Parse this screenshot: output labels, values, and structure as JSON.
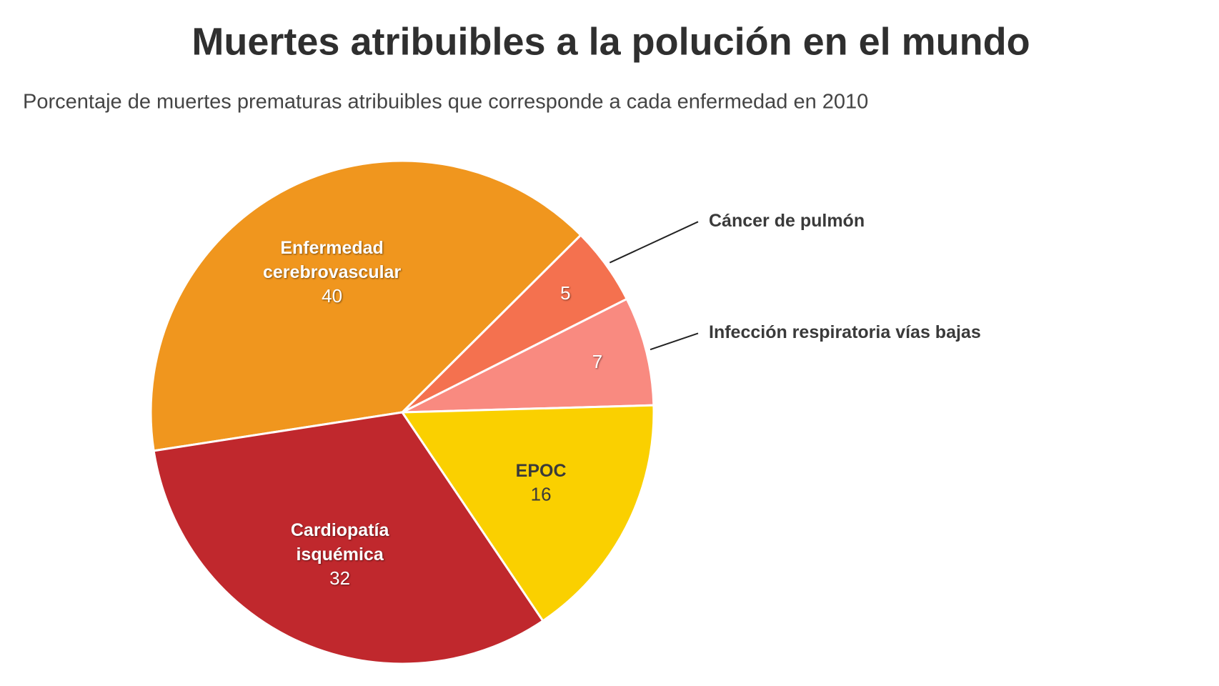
{
  "chart_data": {
    "type": "pie",
    "title": "Muertes atribuibles a la polución en el mundo",
    "subtitle": "Porcentaje de muertes prematuras atribuibles que corresponde a cada enfermedad en 2010",
    "categories": [
      "Infección respiratoria vías bajas",
      "Cáncer de pulmón",
      "Enfermedad cerebrovascular",
      "Cardiopatía isquémica",
      "EPOC"
    ],
    "values": [
      7,
      5,
      40,
      32,
      16
    ],
    "colors": [
      "#f98a80",
      "#f4714f",
      "#f0961e",
      "#c0282d",
      "#fad000"
    ]
  }
}
